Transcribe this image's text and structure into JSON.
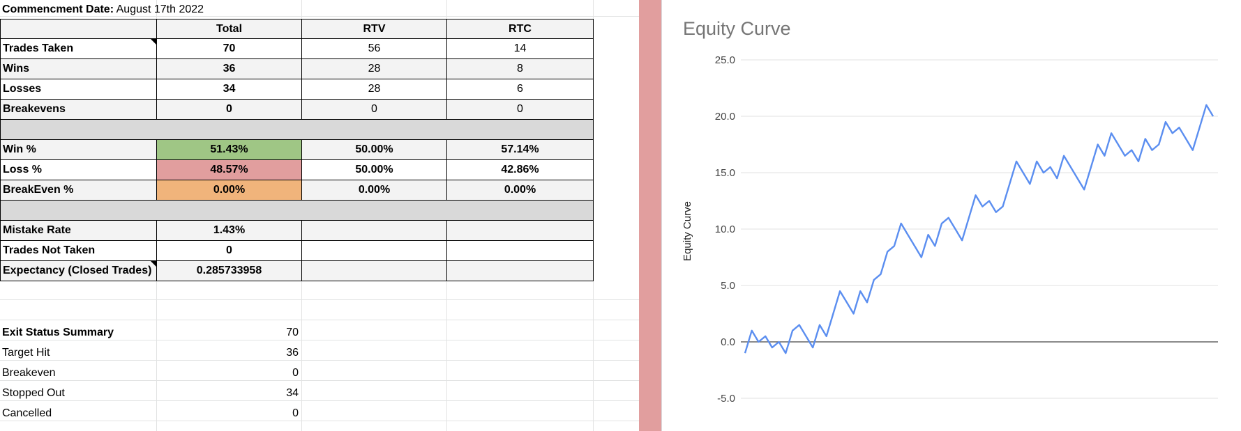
{
  "commencement": {
    "label": "Commencment Date:",
    "value": " August 17th 2022"
  },
  "table": {
    "headers": [
      "Total",
      "RTV",
      "RTC"
    ],
    "rows": [
      {
        "label": "Trades Taken",
        "total": "70",
        "rtv": "56",
        "rtc": "14"
      },
      {
        "label": "Wins",
        "total": "36",
        "rtv": "28",
        "rtc": "8"
      },
      {
        "label": "Losses",
        "total": "34",
        "rtv": "28",
        "rtc": "6"
      },
      {
        "label": "Breakevens",
        "total": "0",
        "rtv": "0",
        "rtc": "0"
      }
    ],
    "percent_rows": [
      {
        "label": "Win %",
        "total": "51.43%",
        "rtv": "50.00%",
        "rtc": "57.14%"
      },
      {
        "label": "Loss %",
        "total": "48.57%",
        "rtv": "50.00%",
        "rtc": "42.86%"
      },
      {
        "label": "BreakEven %",
        "total": "0.00%",
        "rtv": "0.00%",
        "rtc": "0.00%"
      }
    ],
    "extra_rows": [
      {
        "label": "Mistake Rate",
        "total": "1.43%"
      },
      {
        "label": "Trades Not Taken",
        "total": "0"
      },
      {
        "label": "Expectancy (Closed Trades)",
        "total": "0.285733958"
      }
    ]
  },
  "exit_summary": {
    "title": "Exit Status Summary",
    "total": "70",
    "rows": [
      {
        "label": "Target Hit",
        "value": "36"
      },
      {
        "label": "Breakeven",
        "value": "0"
      },
      {
        "label": "Stopped Out",
        "value": "34"
      },
      {
        "label": "Cancelled",
        "value": "0"
      }
    ]
  },
  "colors": {
    "win_fill": "#9fc685",
    "loss_fill": "#e19e9e",
    "breakeven_fill": "#f0b47b",
    "line": "#5b8ef0",
    "divider": "#e19e9e"
  },
  "chart_data": {
    "type": "line",
    "title": "Equity Curve",
    "xlabel": "",
    "ylabel": "Equity Curve",
    "ylim": [
      -7.5,
      27.5
    ],
    "yticks": [
      "25.0",
      "20.0",
      "15.0",
      "10.0",
      "5.0",
      "0.0",
      "-5.0"
    ],
    "ytick_values": [
      25,
      20,
      15,
      10,
      5,
      0,
      -5
    ],
    "grid": true,
    "series": [
      {
        "values": [
          -1,
          1,
          0,
          0.5,
          -0.5,
          0,
          -1,
          1,
          1.5,
          0.5,
          -0.5,
          1.5,
          0.5,
          2.5,
          4.5,
          3.5,
          2.5,
          4.5,
          3.5,
          5.5,
          6,
          8,
          8.5,
          10.5,
          9.5,
          8.5,
          7.5,
          9.5,
          8.5,
          10.5,
          11,
          10,
          9,
          11,
          13,
          12,
          12.5,
          11.5,
          12,
          14,
          16,
          15,
          14,
          16,
          15,
          15.5,
          14.5,
          16.5,
          15.5,
          14.5,
          13.5,
          15.5,
          17.5,
          16.5,
          18.5,
          17.5,
          16.5,
          17,
          16,
          18,
          17,
          17.5,
          19.5,
          18.5,
          19,
          18,
          17,
          19,
          21,
          20
        ]
      }
    ]
  }
}
